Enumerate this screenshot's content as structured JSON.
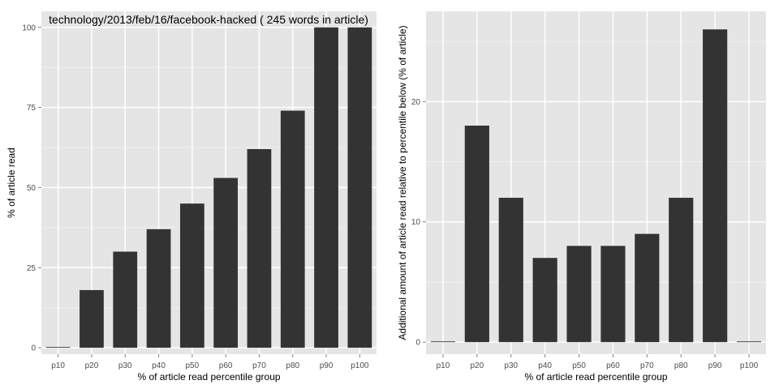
{
  "chart_data": [
    {
      "type": "bar",
      "title": "technology/2013/feb/16/facebook-hacked ( 245 words in article)",
      "xlabel": "% of article read percentile group",
      "ylabel": "% of article read",
      "categories": [
        "p10",
        "p20",
        "p30",
        "p40",
        "p50",
        "p60",
        "p70",
        "p80",
        "p90",
        "p100"
      ],
      "values": [
        0,
        18,
        30,
        37,
        45,
        53,
        62,
        74,
        100,
        100
      ],
      "yticks": [
        0,
        25,
        50,
        75,
        100
      ],
      "ylim": [
        -2,
        105
      ],
      "grid": true,
      "bar_color": "#333333",
      "panel_color": "#e5e5e5"
    },
    {
      "type": "bar",
      "title": "",
      "xlabel": "% of article read percentile group",
      "ylabel": "Additional amount of article read relative to percentile below (% of article)",
      "categories": [
        "p10",
        "p20",
        "p30",
        "p40",
        "p50",
        "p60",
        "p70",
        "p80",
        "p90",
        "p100"
      ],
      "values": [
        0,
        18,
        12,
        7,
        8,
        8,
        9,
        12,
        26,
        0
      ],
      "yticks": [
        0,
        10,
        20
      ],
      "ylim": [
        -1,
        27.5
      ],
      "grid": true,
      "bar_color": "#333333",
      "panel_color": "#e5e5e5"
    }
  ]
}
